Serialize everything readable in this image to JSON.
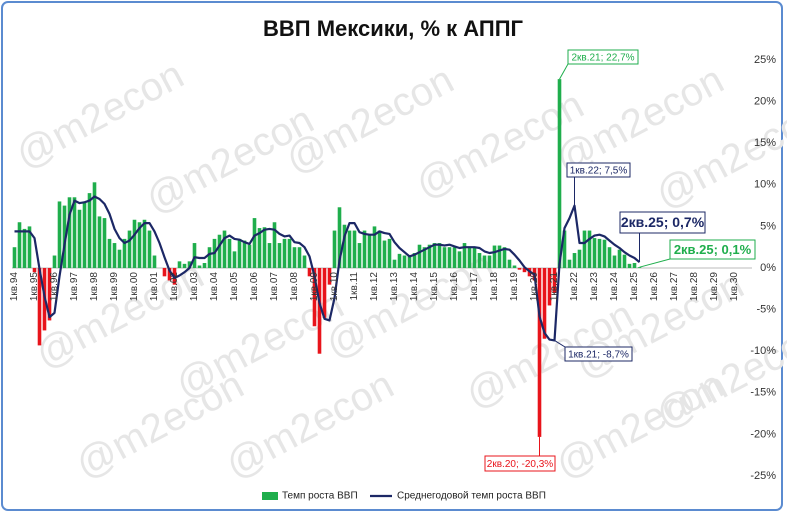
{
  "chart_data": {
    "type": "bar-line",
    "title": "ВВП Мексики, % к АППГ",
    "watermark": "@m2econ",
    "categories": [
      "1кв.94",
      null,
      null,
      null,
      "1кв.95",
      null,
      null,
      null,
      "1кв.96",
      null,
      null,
      null,
      "1кв.97",
      null,
      null,
      null,
      "1кв.98",
      null,
      null,
      null,
      "1кв.99",
      null,
      null,
      null,
      "1кв.00",
      null,
      null,
      null,
      "1кв.01",
      null,
      null,
      null,
      "1кв.02",
      null,
      null,
      null,
      "1кв.03",
      null,
      null,
      null,
      "1кв.04",
      null,
      null,
      null,
      "1кв.05",
      null,
      null,
      null,
      "1кв.06",
      null,
      null,
      null,
      "1кв.07",
      null,
      null,
      null,
      "1кв.08",
      null,
      null,
      null,
      "1кв.09",
      null,
      null,
      null,
      "1кв.10",
      null,
      null,
      null,
      "1кв.11",
      null,
      null,
      null,
      "1кв.12",
      null,
      null,
      null,
      "1кв.13",
      null,
      null,
      null,
      "1кв.14",
      null,
      null,
      null,
      "1кв.15",
      null,
      null,
      null,
      "1кв.16",
      null,
      null,
      null,
      "1кв.17",
      null,
      null,
      null,
      "1кв.18",
      null,
      null,
      null,
      "1кв.19",
      null,
      null,
      null,
      "1кв.20",
      null,
      null,
      null,
      "1кв.21",
      null,
      null,
      null,
      "1кв.22",
      null,
      null,
      null,
      "1кв.23",
      null,
      null,
      null,
      "1кв.24",
      null,
      null,
      null,
      "1кв.25",
      null,
      null,
      null,
      "1кв.26",
      null,
      null,
      null,
      "1кв.27",
      null,
      null,
      null,
      "1кв.28",
      null,
      null,
      null,
      "1кв.29",
      null,
      null,
      null,
      "1кв.30",
      null,
      null,
      null
    ],
    "series": [
      {
        "name": "Темп роста ВВП",
        "kind": "bar",
        "color": "#1fae4c",
        "negative_color": "#e8141b",
        "values": [
          2.5,
          5.5,
          4.7,
          5.0,
          -0.5,
          -9.3,
          -7.5,
          -6.3,
          1.5,
          8.0,
          7.5,
          8.5,
          8.5,
          7.0,
          8.0,
          9.0,
          10.3,
          6.2,
          6.0,
          3.5,
          3.0,
          2.2,
          3.5,
          4.5,
          5.8,
          5.5,
          5.8,
          4.5,
          1.5,
          0.0,
          -1.0,
          -1.5,
          -2.0,
          0.8,
          0.5,
          0.8,
          3.0,
          0.3,
          0.6,
          2.5,
          3.5,
          4.0,
          4.5,
          3.5,
          2.0,
          3.5,
          3.3,
          2.8,
          6.0,
          4.8,
          4.9,
          3.0,
          5.5,
          3.0,
          3.5,
          3.5,
          2.5,
          2.5,
          1.5,
          -1.0,
          -7.0,
          -10.3,
          -6.0,
          -2.0,
          4.5,
          7.3,
          5.2,
          4.5,
          4.5,
          3.0,
          4.5,
          4.0,
          5.0,
          4.5,
          3.3,
          3.5,
          1.0,
          1.7,
          1.5,
          1.5,
          1.8,
          2.8,
          2.5,
          2.8,
          3.0,
          3.0,
          2.5,
          2.5,
          2.5,
          2.0,
          3.0,
          2.5,
          2.5,
          1.8,
          1.5,
          1.5,
          2.7,
          2.7,
          2.5,
          1.0,
          0.3,
          -0.2,
          -0.5,
          -1.0,
          -1.5,
          -20.3,
          -8.5,
          -4.5,
          -3.0,
          22.7,
          4.5,
          1.0,
          1.8,
          2.2,
          4.5,
          4.5,
          3.6,
          3.5,
          3.4,
          2.5,
          1.5,
          2.2,
          1.6,
          0.5,
          0.6,
          0.1,
          null,
          null,
          null,
          null,
          null,
          null,
          null,
          null,
          null,
          null,
          null,
          null,
          null,
          null,
          null,
          null,
          null,
          null,
          null,
          null,
          null,
          null
        ]
      },
      {
        "name": "Среднегодовой темп роста ВВП",
        "kind": "line",
        "color": "#1c2866",
        "values": [
          4.4,
          4.4,
          4.4,
          4.4,
          3.6,
          -0.1,
          -3.4,
          -5.9,
          -5.4,
          -1.0,
          2.8,
          6.4,
          8.1,
          7.8,
          7.9,
          8.1,
          8.6,
          8.3,
          7.7,
          6.5,
          4.7,
          3.6,
          3.0,
          3.3,
          4.0,
          4.8,
          5.4,
          5.4,
          4.4,
          3.0,
          1.3,
          -0.3,
          -1.2,
          -0.9,
          -0.5,
          0.0,
          1.3,
          1.2,
          1.2,
          1.7,
          1.8,
          2.7,
          3.6,
          3.9,
          3.5,
          3.4,
          3.1,
          2.9,
          3.9,
          4.2,
          4.6,
          4.7,
          4.6,
          4.1,
          3.8,
          3.9,
          3.1,
          3.0,
          2.5,
          1.4,
          -1.0,
          -4.2,
          -6.1,
          -6.3,
          -3.6,
          0.9,
          3.8,
          5.4,
          5.4,
          4.3,
          4.1,
          4.0,
          4.0,
          4.4,
          4.2,
          4.1,
          3.1,
          2.4,
          1.9,
          1.4,
          1.6,
          1.9,
          2.2,
          2.5,
          2.8,
          2.8,
          2.7,
          2.8,
          2.6,
          2.4,
          2.5,
          2.5,
          2.5,
          2.4,
          2.0,
          1.8,
          1.9,
          2.1,
          2.3,
          2.2,
          1.6,
          0.9,
          0.1,
          -0.4,
          -0.8,
          -5.8,
          -7.8,
          -8.6,
          -8.7,
          0.5,
          4.8,
          6.0,
          7.5,
          3.0,
          3.0,
          3.5,
          3.9,
          4.0,
          3.8,
          3.3,
          2.8,
          2.4,
          1.9,
          1.5,
          1.2,
          0.7,
          null,
          null,
          null,
          null,
          null,
          null,
          null,
          null,
          null,
          null,
          null,
          null,
          null,
          null,
          null,
          null,
          null,
          null,
          null,
          null,
          null,
          null
        ]
      }
    ],
    "ylim": [
      -26.5,
      27.5
    ],
    "yticks": [
      {
        "value": -25,
        "label": "-25%"
      },
      {
        "value": -20,
        "label": "-20%"
      },
      {
        "value": -15,
        "label": "-15%"
      },
      {
        "value": -10,
        "label": "-10%"
      },
      {
        "value": -5,
        "label": "-5%"
      },
      {
        "value": 0,
        "label": "0%"
      },
      {
        "value": 5,
        "label": "5%"
      },
      {
        "value": 10,
        "label": "10%"
      },
      {
        "value": 15,
        "label": "15%"
      },
      {
        "value": 20,
        "label": "20%"
      },
      {
        "value": 25,
        "label": "25%"
      }
    ],
    "annotations": [
      {
        "text": "2кв.21; 22,7%",
        "color": "#1fae4c"
      },
      {
        "text": "1кв.22; 7,5%",
        "color": "#1c2866"
      },
      {
        "text": "2кв.25; 0,7%",
        "color": "#1c2866"
      },
      {
        "text": "2кв.25; 0,1%",
        "color": "#1fae4c"
      },
      {
        "text": "1кв.21; -8,7%",
        "color": "#1c2866"
      },
      {
        "text": "2кв.20; -20,3%",
        "color": "#e8141b"
      }
    ],
    "legend": "bottom"
  }
}
